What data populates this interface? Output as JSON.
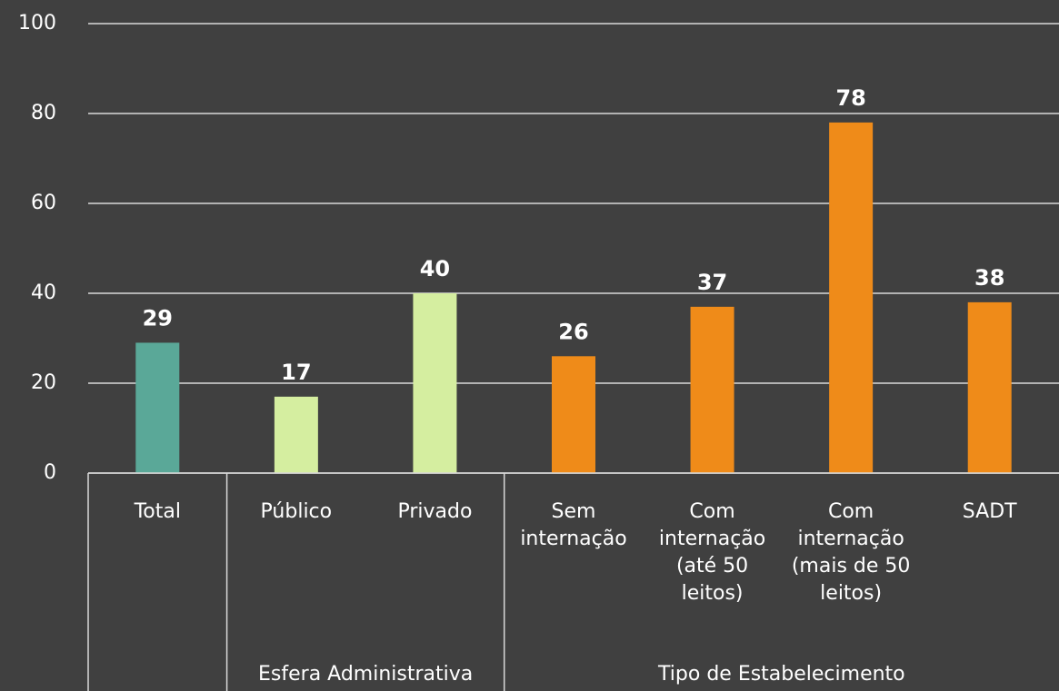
{
  "chart_data": {
    "type": "bar",
    "categories": [
      "Total",
      "Público",
      "Privado",
      "Sem internação",
      "Com internação (até 50 leitos)",
      "Com internação (mais de 50 leitos)",
      "SADT"
    ],
    "values": [
      29,
      17,
      40,
      26,
      37,
      78,
      38
    ],
    "colors": [
      "#5aa898",
      "#d5eea0",
      "#d5eea0",
      "#ef8b19",
      "#ef8b19",
      "#ef8b19",
      "#ef8b19"
    ],
    "groups": [
      {
        "size": 1
      },
      {
        "label": "Esfera Administrativa",
        "size": 2
      },
      {
        "label": "Tipo de Estabelecimento",
        "size": 4
      }
    ],
    "ylim": [
      0,
      100
    ],
    "yticks": [
      0,
      20,
      40,
      60,
      80,
      100
    ],
    "grid": true
  }
}
